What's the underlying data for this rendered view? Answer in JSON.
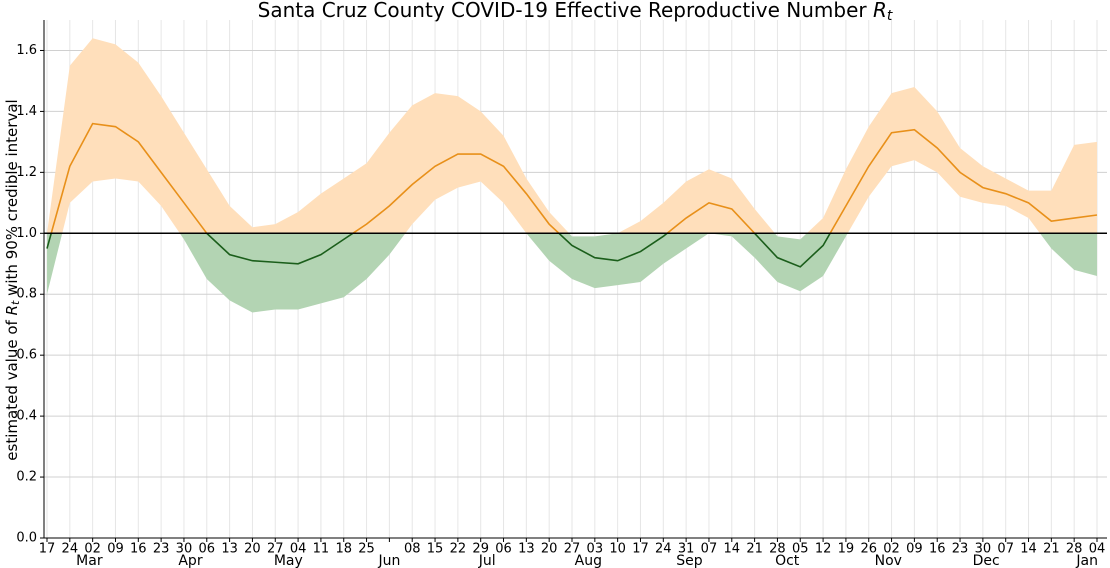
{
  "chart_data": {
    "type": "line",
    "title_parts": [
      "Santa Cruz County COVID-19 Effective Reproductive Number ",
      "R",
      "t"
    ],
    "ylabel_parts": [
      "estimated value of ",
      "R",
      "t",
      " with 90% credible interval"
    ],
    "categories": [
      "17",
      "24",
      "02",
      "09",
      "16",
      "23",
      "30",
      "06",
      "13",
      "20",
      "27",
      "04",
      "11",
      "18",
      "25",
      null,
      "08",
      "15",
      "22",
      "29",
      "06",
      "13",
      "20",
      "27",
      "03",
      "10",
      "17",
      "24",
      "31",
      "07",
      "14",
      "21",
      "28",
      "05",
      "12",
      "19",
      "26",
      "02",
      "09",
      "16",
      "23",
      "30",
      "07",
      "14",
      "21",
      "28",
      "04"
    ],
    "month_labels": [
      null,
      null,
      "Mar",
      null,
      null,
      null,
      null,
      "Apr",
      null,
      null,
      null,
      "May",
      null,
      null,
      null,
      "Jun",
      null,
      null,
      null,
      null,
      "Jul",
      null,
      null,
      null,
      "Aug",
      null,
      null,
      null,
      null,
      "Sep",
      null,
      null,
      null,
      "Oct",
      null,
      null,
      null,
      "Nov",
      null,
      null,
      null,
      null,
      "Dec",
      null,
      null,
      null,
      "Jan"
    ],
    "values": [
      0.95,
      1.22,
      1.36,
      1.35,
      1.3,
      1.2,
      1.1,
      1.0,
      0.93,
      0.91,
      0.905,
      0.9,
      0.93,
      0.98,
      1.03,
      1.09,
      1.16,
      1.22,
      1.26,
      1.26,
      1.22,
      1.13,
      1.03,
      0.96,
      0.92,
      0.91,
      0.94,
      0.99,
      1.05,
      1.1,
      1.08,
      1.0,
      0.92,
      0.89,
      0.96,
      1.09,
      1.22,
      1.33,
      1.34,
      1.28,
      1.2,
      1.15,
      1.13,
      1.1,
      1.04,
      1.05,
      1.06
    ],
    "lower": [
      0.8,
      1.1,
      1.17,
      1.18,
      1.17,
      1.09,
      0.98,
      0.85,
      0.78,
      0.74,
      0.75,
      0.75,
      0.77,
      0.79,
      0.85,
      0.93,
      1.03,
      1.11,
      1.15,
      1.17,
      1.1,
      1.0,
      0.91,
      0.85,
      0.82,
      0.83,
      0.84,
      0.9,
      0.95,
      1.0,
      0.99,
      0.92,
      0.84,
      0.81,
      0.86,
      0.99,
      1.12,
      1.22,
      1.24,
      1.2,
      1.12,
      1.1,
      1.09,
      1.05,
      0.95,
      0.88,
      0.86
    ],
    "upper": [
      1.0,
      1.55,
      1.64,
      1.62,
      1.56,
      1.45,
      1.33,
      1.21,
      1.09,
      1.02,
      1.03,
      1.07,
      1.13,
      1.18,
      1.23,
      1.33,
      1.42,
      1.46,
      1.45,
      1.4,
      1.32,
      1.18,
      1.07,
      0.99,
      0.99,
      1.0,
      1.04,
      1.1,
      1.17,
      1.21,
      1.18,
      1.08,
      0.99,
      0.98,
      1.05,
      1.21,
      1.35,
      1.46,
      1.48,
      1.4,
      1.28,
      1.22,
      1.18,
      1.14,
      1.14,
      1.29,
      1.3
    ],
    "threshold": 1.0,
    "colors": {
      "above_line": "#e8901a",
      "below_line": "#1b5e1b",
      "above_band": "#ffdfbb",
      "below_band": "#b3d4b3",
      "threshold": "#000000"
    },
    "ylim": [
      0,
      1.7
    ],
    "yticks": [
      {
        "value": 0,
        "label": "0.0"
      },
      {
        "value": 0.2,
        "label": "0.2"
      },
      {
        "value": 0.4,
        "label": "0.4"
      },
      {
        "value": 0.6,
        "label": "0.6"
      },
      {
        "value": 0.8,
        "label": "0.8"
      },
      {
        "value": 1.0,
        "label": "1.0"
      },
      {
        "value": 1.2,
        "label": "1.2"
      },
      {
        "value": 1.4,
        "label": "1.4"
      },
      {
        "value": 1.6,
        "label": "1.6"
      }
    ],
    "grid": true
  }
}
